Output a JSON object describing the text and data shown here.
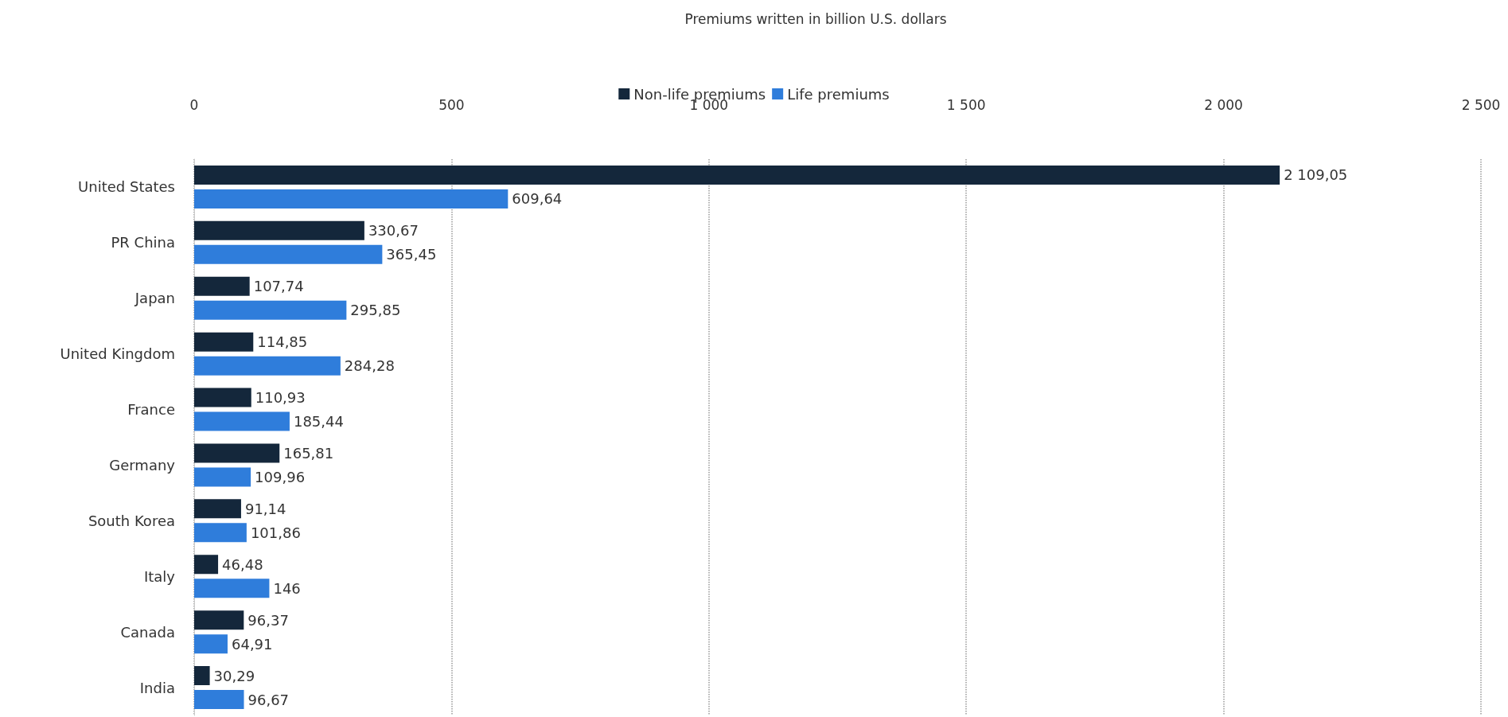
{
  "chart_data": {
    "type": "bar",
    "orientation": "horizontal",
    "title": "Premiums written in billion U.S. dollars",
    "categories": [
      "United States",
      "PR China",
      "Japan",
      "United Kingdom",
      "France",
      "Germany",
      "South Korea",
      "Italy",
      "Canada",
      "India"
    ],
    "series": [
      {
        "name": "Non-life premiums",
        "color": "#14273b",
        "values": [
          2109.05,
          330.67,
          107.74,
          114.85,
          110.93,
          165.81,
          91.14,
          46.48,
          96.37,
          30.29
        ],
        "value_labels": [
          "2 109,05",
          "330,67",
          "107,74",
          "114,85",
          "110,93",
          "165,81",
          "91,14",
          "46,48",
          "96,37",
          "30,29"
        ]
      },
      {
        "name": "Life premiums",
        "color": "#2f7ddb",
        "values": [
          609.64,
          365.45,
          295.85,
          284.28,
          185.44,
          109.96,
          101.86,
          146,
          64.91,
          96.67
        ],
        "value_labels": [
          "609,64",
          "365,45",
          "295,85",
          "284,28",
          "185,44",
          "109,96",
          "101,86",
          "146",
          "64,91",
          "96,67"
        ]
      }
    ],
    "xlim": [
      0,
      2500
    ],
    "xticks": [
      0,
      500,
      {
        "value": 1000,
        "label": "1 000"
      },
      {
        "value": 1500,
        "label": "1 500"
      },
      {
        "value": 2000,
        "label": "2 000"
      },
      {
        "value": 2500,
        "label": "2 500"
      }
    ],
    "grid": "x",
    "legend": "top"
  }
}
